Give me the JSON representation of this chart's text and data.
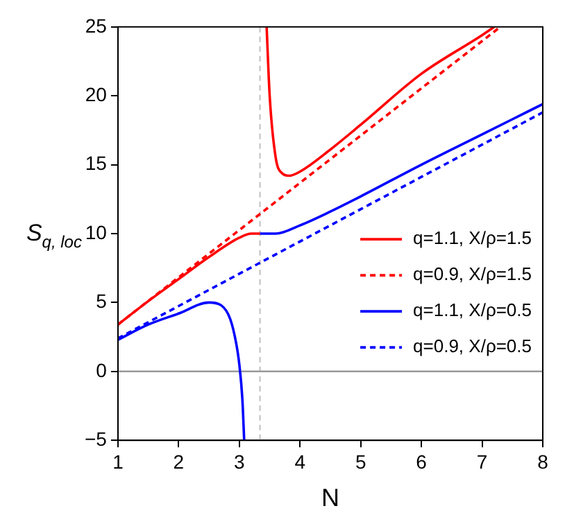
{
  "chart_data": {
    "type": "line",
    "xlabel": "N",
    "ylabel": "S$_{q, loc}$",
    "xlim": [
      1,
      8
    ],
    "xticks": [
      1,
      2,
      3,
      4,
      5,
      6,
      7,
      8
    ],
    "ylim": [
      -5,
      25
    ],
    "yticks": [
      -5,
      0,
      5,
      10,
      15,
      20,
      25
    ],
    "grid": false,
    "legend": "right",
    "marker": "none",
    "series": [
      {
        "name": "q=1.1, X/ρ=1.5",
        "color": "#ff0000",
        "line_style": "solid",
        "x": [
          1,
          1.5,
          2,
          2.5,
          3,
          3.2,
          3.34,
          3.4,
          3.45,
          3.5,
          3.6,
          3.7,
          3.82,
          4,
          4.5,
          5,
          6,
          7,
          7.2
        ],
        "values": [
          3.4,
          5.1,
          6.7,
          8.3,
          9.7,
          10.0,
          10.0,
          null,
          25,
          20,
          15.5,
          14.4,
          14.2,
          14.5,
          16.1,
          17.9,
          21.6,
          24.4,
          25
        ]
      },
      {
        "name": "q=0.9, X/ρ=1.5",
        "color": "#ff0000",
        "line_style": "dashed",
        "x": [
          1,
          7.3
        ],
        "values": [
          3.4,
          25
        ]
      },
      {
        "name": "q=1.1, X/ρ=0.5",
        "color": "#0000ff",
        "line_style": "solid",
        "x": [
          1,
          1.5,
          2,
          2.5,
          2.7,
          2.85,
          2.95,
          3.0,
          3.05,
          3.08,
          3.2,
          3.34,
          3.6,
          4,
          4.5,
          5,
          6,
          7,
          8
        ],
        "values": [
          2.3,
          3.4,
          4.2,
          5.0,
          4.8,
          3.8,
          2,
          0.5,
          -2,
          -5,
          null,
          10,
          10,
          10.6,
          11.6,
          12.7,
          15,
          17.2,
          19.4
        ]
      },
      {
        "name": "q=0.9, X/ρ=0.5",
        "color": "#0000ff",
        "line_style": "dashed",
        "x": [
          1,
          8
        ],
        "values": [
          2.4,
          18.8
        ]
      }
    ],
    "ref_lines": [
      {
        "axis": "x",
        "value": 3.34,
        "color": "#c8c8c8",
        "line_style": "dashed"
      },
      {
        "axis": "y",
        "value": 0,
        "color": "#999999",
        "line_style": "solid"
      }
    ]
  }
}
